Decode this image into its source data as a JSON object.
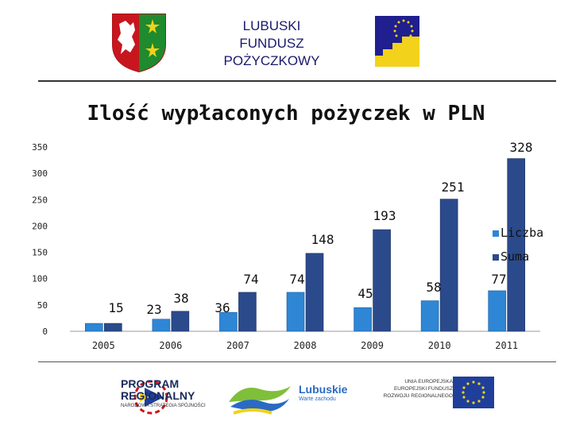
{
  "header": {
    "org_lines": [
      "LUBUSKI",
      "FUNDUSZ",
      "POŻYCZKOWY"
    ]
  },
  "chart_data": {
    "type": "bar",
    "title": "Ilość wypłaconych pożyczek w PLN",
    "categories": [
      "2005",
      "2006",
      "2007",
      "2008",
      "2009",
      "2010",
      "2011"
    ],
    "series": [
      {
        "name": "Liczba",
        "values": [
          15,
          23,
          36,
          74,
          45,
          58,
          77
        ],
        "color": "#2e86d4"
      },
      {
        "name": "Suma",
        "values": [
          15,
          38,
          74,
          148,
          193,
          251,
          328
        ],
        "color": "#2b4a8c"
      }
    ],
    "data_labels": [
      "15",
      "23",
      "38",
      "36",
      "74",
      "74",
      "148",
      "45",
      "193",
      "58",
      "251",
      "77",
      "328"
    ],
    "ylim": [
      0,
      350
    ],
    "yticks": [
      0,
      50,
      100,
      150,
      200,
      250,
      300,
      350
    ],
    "grid": false,
    "legend": "right"
  },
  "footer": {
    "program_lines": [
      "PROGRAM",
      "REGIONALNY",
      "NARODOWA STRATEGIA SPÓJNOŚCI"
    ],
    "lubuskie_name": "Lubuskie",
    "lubuskie_slogan": "Warte zachodu",
    "eu_lines": [
      "UNIA EUROPEJSKA",
      "EUROPEJSKI FUNDUSZ",
      "ROZWOJU REGIONALNEGO"
    ]
  }
}
